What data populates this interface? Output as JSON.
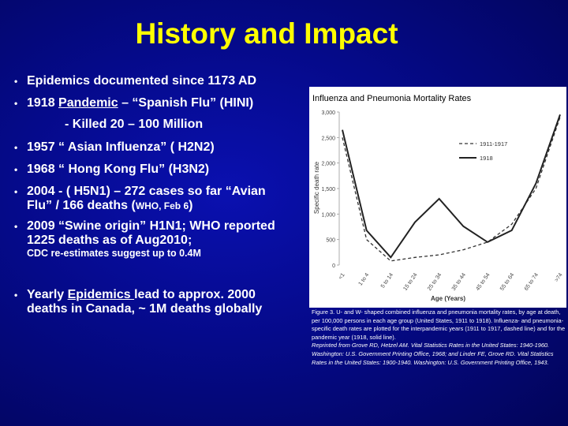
{
  "title": "History and Impact",
  "bullets": [
    {
      "parts": [
        "Epidemics documented since 1173 AD"
      ]
    },
    {
      "parts": [
        "1918 ",
        "Pandemic",
        " – “Spanish Flu” (HINI)"
      ],
      "sub": "- Killed 20 – 100 Million"
    },
    {
      "parts": [
        "1957  “ Asian Influenza” ( H2N2)"
      ]
    },
    {
      "parts": [
        "1968   “ Hong Kong Flu” (H3N2)"
      ]
    },
    {
      "parts": [
        "2004   - ( H5N1) – 272 cases so far “Avian Flu” / 166 deaths (",
        "WHO, Feb 6",
        ")"
      ]
    },
    {
      "parts": [
        "2009 “Swine origin” H1N1; WHO reported 1225 deaths as of Aug2010;"
      ],
      "note": "CDC re-estimates suggest up to 0.4M"
    },
    {
      "parts": [
        "Yearly ",
        "Epidemics ",
        " lead to approx. 2000 deaths in Canada, ~ 1M deaths globally"
      ]
    }
  ],
  "figure": {
    "type": "line",
    "title": "Influenza and Pneumonia Mortality Rates",
    "y_label": "Specific death rate",
    "x_label": "Age (Years)",
    "categories": [
      "<1",
      "1 to 4",
      "5 to 14",
      "15 to 24",
      "25 to 34",
      "35 to 44",
      "45 to 54",
      "55 to 64",
      "65 to 74",
      ">74"
    ],
    "series": [
      {
        "name": "1911-1917",
        "color": "#333333",
        "style": "dashed",
        "values": [
          2500,
          500,
          80,
          150,
          200,
          300,
          450,
          800,
          1500,
          2900
        ]
      },
      {
        "name": "1918",
        "color": "#222222",
        "style": "solid",
        "values": [
          2650,
          680,
          150,
          840,
          1300,
          760,
          450,
          680,
          1600,
          2950
        ]
      }
    ],
    "ylim": [
      0,
      3000
    ],
    "yticks": [
      0,
      500,
      {
        "value": 1000,
        "label": "1,000"
      },
      {
        "value": 1500,
        "label": "1,500"
      },
      {
        "value": 2000,
        "label": "2,000"
      },
      {
        "value": 2500,
        "label": "2,500"
      },
      {
        "value": 3000,
        "label": "3,000"
      }
    ],
    "caption": [
      "Figure 3. U- and W- shaped combined influenza and pneumonia mortality rates, by age at death, per 100,000 persons in each age group (United States, 1911 to 1918). Influenza- and pneumonia-specific death rates are plotted for the interpandemic years (1911 to 1917, dashed line) and for the pandemic year (1918, solid line).",
      "Reprinted from Grove RD, Hetzel AM. Vital Statistics Rates in the United States: 1940-1960. Washington: U.S. Government Printing Office, 1968; and Linder FE, Grove RD. Vital Statistics Rates in the United States: 1900-1940. Washington: U.S. Government Printing Office, 1943."
    ]
  }
}
